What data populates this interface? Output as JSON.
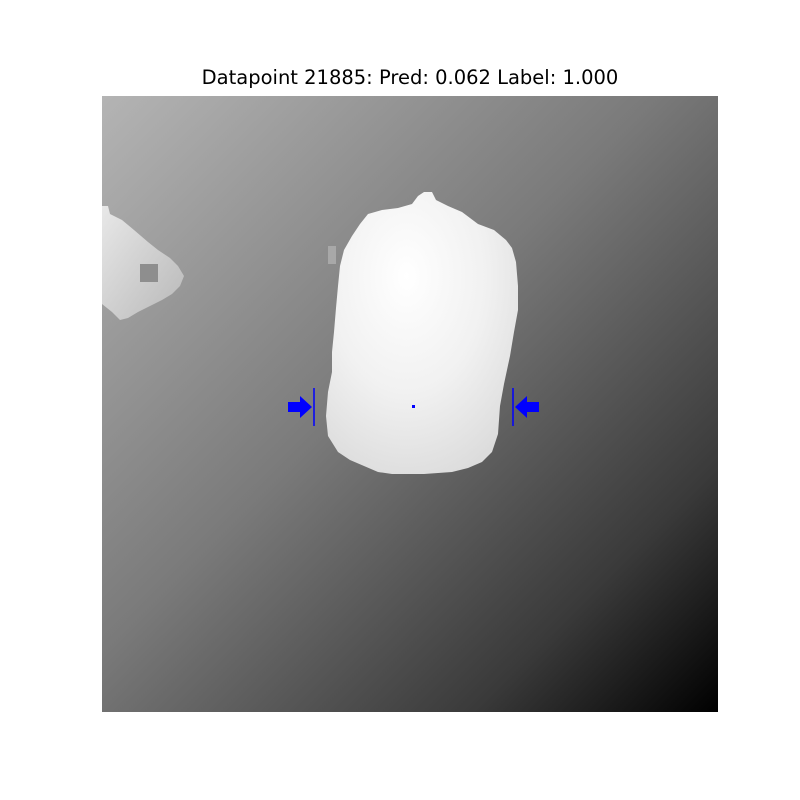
{
  "figure": {
    "title": "Datapoint 21885: Pred: 0.062 Label: 1.000"
  },
  "colors": {
    "grasp_marker": "#0000ff",
    "object_fill": "#ececec",
    "background_light": "#b4b4b4",
    "background_dark": "#000000"
  }
}
